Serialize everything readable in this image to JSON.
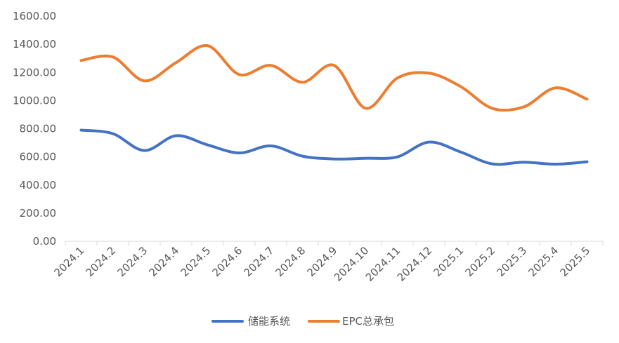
{
  "chart_data": {
    "type": "line",
    "title": "",
    "xlabel": "",
    "ylabel": "",
    "categories": [
      "2024.1",
      "2024.2",
      "2024.3",
      "2024.4",
      "2024.5",
      "2024.6",
      "2024.7",
      "2024.8",
      "2024.9",
      "2024.10",
      "2024.11",
      "2024.12",
      "2025.1",
      "2025.2",
      "2025.3",
      "2025.4",
      "2025.5"
    ],
    "series": [
      {
        "name": "储能系统",
        "color": "#4472C4",
        "values": [
          790,
          765,
          645,
          750,
          685,
          628,
          678,
          605,
          585,
          590,
          600,
          705,
          635,
          550,
          562,
          548,
          565
        ]
      },
      {
        "name": "EPC总承包",
        "color": "#ED7D31",
        "values": [
          1285,
          1310,
          1140,
          1270,
          1390,
          1185,
          1250,
          1130,
          1250,
          945,
          1160,
          1195,
          1100,
          945,
          955,
          1090,
          1010
        ]
      }
    ],
    "ylim": [
      0,
      1600
    ],
    "yticks": [
      "0.00",
      "200.00",
      "400.00",
      "600.00",
      "800.00",
      "1000.00",
      "1200.00",
      "1400.00",
      "1600.00"
    ],
    "grid": false,
    "legend_position": "bottom",
    "smooth": true
  }
}
